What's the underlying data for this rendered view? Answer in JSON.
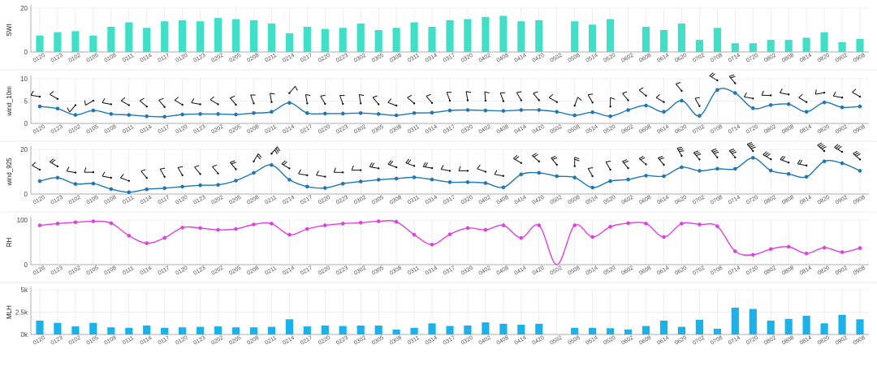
{
  "x_labels": [
    "0120",
    "0123",
    "0102",
    "0105",
    "0108",
    "0111",
    "0114",
    "0117",
    "0120",
    "0123",
    "0202",
    "0205",
    "0208",
    "0211",
    "0214",
    "0217",
    "0220",
    "0223",
    "0302",
    "0305",
    "0308",
    "0311",
    "0314",
    "0317",
    "0320",
    "0402",
    "0408",
    "0414",
    "0420",
    "0502",
    "0508",
    "0514",
    "0520",
    "0602",
    "0608",
    "0614",
    "0620",
    "0702",
    "0708",
    "0714",
    "0720",
    "0802",
    "0808",
    "0814",
    "0820",
    "0902",
    "0908"
  ],
  "colors": {
    "swi": "#40e0c8",
    "wind": "#1f77b4",
    "rh": "#e040e0",
    "mlh": "#1ab2ea",
    "grid": "#e2e2e2",
    "axis": "#999999",
    "barb": "#111111"
  },
  "chart_data": [
    {
      "type": "bar",
      "ylabel": "SWI",
      "yticks": [
        "0",
        "20"
      ],
      "ylim": [
        0,
        20
      ],
      "values": [
        7.5,
        9,
        9.5,
        7.5,
        11.5,
        13.5,
        11,
        14,
        14.5,
        14,
        15.5,
        15,
        14.5,
        13,
        8.5,
        11.5,
        10.5,
        11,
        13,
        10,
        11,
        13.5,
        11.5,
        14.5,
        15,
        16,
        16.5,
        14,
        14.5,
        null,
        14,
        12.5,
        15,
        null,
        11.5,
        10,
        13,
        5.5,
        11,
        4,
        4,
        5.5,
        5.5,
        6.5,
        9,
        4.5,
        6
      ]
    },
    {
      "type": "line",
      "ylabel": "wind_10m",
      "yticks": [
        "0",
        "5",
        "10"
      ],
      "ylim": [
        0,
        10
      ],
      "values": [
        3.8,
        3.3,
        1.9,
        2.9,
        2.1,
        1.9,
        1.6,
        1.5,
        2.0,
        2.1,
        2.1,
        2.0,
        2.3,
        2.6,
        4.6,
        2.3,
        2.2,
        2.2,
        2.3,
        2.1,
        1.8,
        2.3,
        2.4,
        2.9,
        3.0,
        2.9,
        2.8,
        3.0,
        3.0,
        2.6,
        1.8,
        2.5,
        1.6,
        3.0,
        4.0,
        2.6,
        5.1,
        1.7,
        7.5,
        6.8,
        3.4,
        4.1,
        4.3,
        2.6,
        4.7,
        3.6,
        3.8
      ],
      "barb_dir": [
        280,
        300,
        220,
        240,
        280,
        300,
        310,
        320,
        300,
        280,
        300,
        320,
        340,
        350,
        40,
        350,
        330,
        340,
        350,
        320,
        290,
        310,
        320,
        340,
        350,
        355,
        340,
        330,
        320,
        300,
        20,
        330,
        0,
        320,
        310,
        300,
        320,
        330,
        300,
        320,
        280,
        270,
        280,
        300,
        260,
        280,
        300
      ]
    },
    {
      "type": "line",
      "ylabel": "wind_925",
      "yticks": [
        "0",
        "20"
      ],
      "ylim": [
        0,
        20
      ],
      "values": [
        5.8,
        7.3,
        4.5,
        4.7,
        2.2,
        0.8,
        2.1,
        2.6,
        3.3,
        3.9,
        4.1,
        6.0,
        9.5,
        13.0,
        6.4,
        3.3,
        2.7,
        4.6,
        5.6,
        6.4,
        6.9,
        7.5,
        6.5,
        5.3,
        5.3,
        4.9,
        3.0,
        8.8,
        9.5,
        8.0,
        7.4,
        2.9,
        5.8,
        6.5,
        8.2,
        8.0,
        12.0,
        10.4,
        11.3,
        11.3,
        16.2,
        10.5,
        9.0,
        7.7,
        14.6,
        13.8,
        10.4
      ],
      "barb_dir": [
        300,
        300,
        280,
        270,
        280,
        290,
        320,
        330,
        330,
        320,
        320,
        320,
        30,
        40,
        300,
        280,
        280,
        270,
        270,
        280,
        290,
        290,
        280,
        280,
        270,
        290,
        280,
        300,
        310,
        320,
        0,
        330,
        330,
        320,
        310,
        320,
        330,
        320,
        320,
        320,
        320,
        300,
        290,
        280,
        310,
        300,
        310
      ]
    },
    {
      "type": "line",
      "ylabel": "RH",
      "yticks": [
        "0",
        "100"
      ],
      "ylim": [
        0,
        100
      ],
      "values": [
        88,
        92,
        95,
        97,
        93,
        65,
        48,
        60,
        83,
        82,
        78,
        80,
        90,
        92,
        67,
        80,
        88,
        92,
        94,
        97,
        96,
        67,
        45,
        68,
        82,
        78,
        88,
        60,
        88,
        0,
        88,
        62,
        85,
        93,
        92,
        62,
        92,
        90,
        86,
        30,
        22,
        35,
        40,
        25,
        38,
        28,
        37
      ]
    },
    {
      "type": "bar",
      "ylabel": "MLH",
      "yticks": [
        "0k",
        "2.5k",
        "5k"
      ],
      "ylim": [
        0,
        5000
      ],
      "values": [
        1550,
        1300,
        900,
        1300,
        800,
        750,
        1000,
        750,
        800,
        850,
        900,
        800,
        800,
        850,
        1700,
        900,
        1000,
        950,
        1000,
        1000,
        550,
        750,
        1250,
        950,
        1000,
        1350,
        1200,
        1100,
        1200,
        null,
        750,
        750,
        700,
        550,
        950,
        1550,
        850,
        1650,
        650,
        3000,
        2850,
        1550,
        1750,
        2100,
        1250,
        2200,
        1700
      ]
    }
  ]
}
